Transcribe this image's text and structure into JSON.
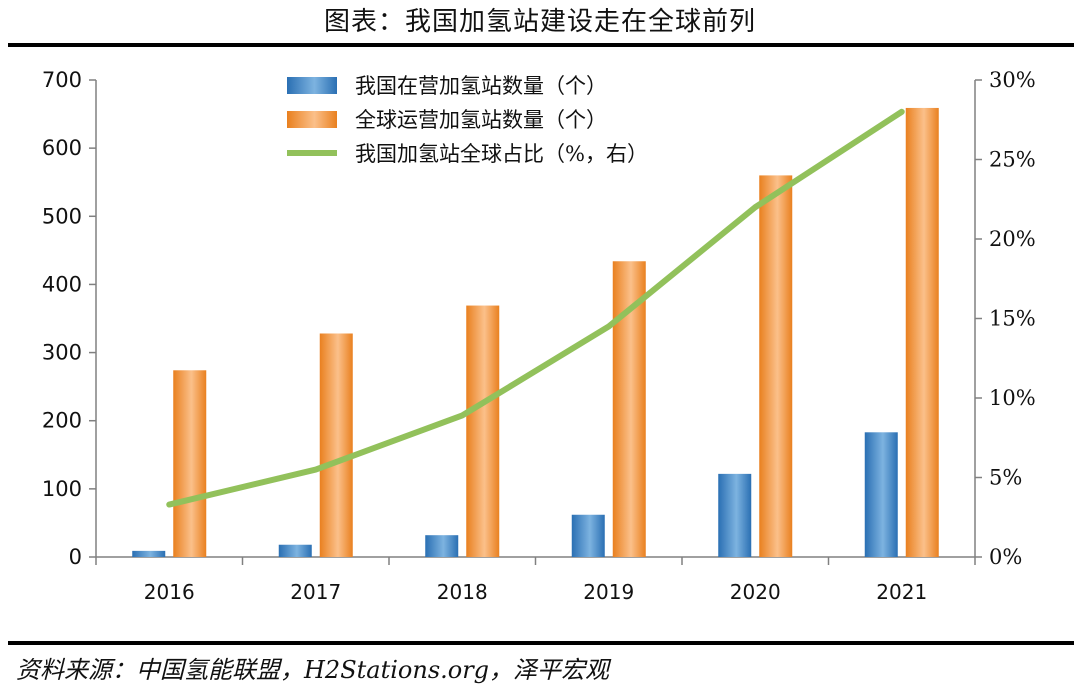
{
  "title": "图表：我国加氢站建设走在全球前列",
  "source": "资料来源：中国氢能联盟，H2Stations.org，泽平宏观",
  "colors": {
    "china_bar": "#3f86c6",
    "global_bar": "#f39a45",
    "share_line": "#92c15b",
    "axis": "#808080"
  },
  "chart_data": {
    "type": "bar",
    "categories": [
      "2016",
      "2017",
      "2018",
      "2019",
      "2020",
      "2021"
    ],
    "series": [
      {
        "name": "我国在营加氢站数量（个）",
        "type": "bar",
        "axis": "left",
        "values": [
          9,
          18,
          32,
          62,
          122,
          183
        ]
      },
      {
        "name": "全球运营加氢站数量（个）",
        "type": "bar",
        "axis": "left",
        "values": [
          274,
          328,
          369,
          434,
          560,
          659
        ]
      },
      {
        "name": "我国加氢站全球占比（%，右）",
        "type": "line",
        "axis": "right",
        "values": [
          3.3,
          5.5,
          8.9,
          14.5,
          22.0,
          28.0
        ]
      }
    ],
    "left_axis": {
      "ylim": [
        0,
        700
      ],
      "ticks": [
        "0",
        "100",
        "200",
        "300",
        "400",
        "500",
        "600",
        "700"
      ]
    },
    "right_axis": {
      "ylim": [
        0,
        30
      ],
      "ticks": [
        "0%",
        "5%",
        "10%",
        "15%",
        "20%",
        "25%",
        "30%"
      ]
    },
    "legend_position": "top-center",
    "grid": false
  }
}
